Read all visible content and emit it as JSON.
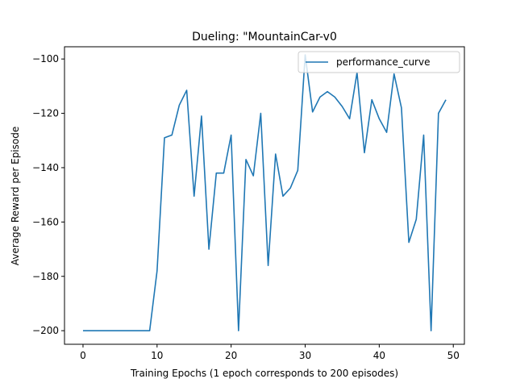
{
  "chart_data": {
    "type": "line",
    "title": "Dueling: \"MountainCar-v0",
    "xlabel": "Training Epochs (1 epoch corresponds to 200 episodes)",
    "ylabel": "Average Reward per Episode",
    "xlim": [
      -2.5,
      51.5
    ],
    "ylim": [
      -205,
      -95.5
    ],
    "xticks": [
      0,
      10,
      20,
      30,
      40,
      50
    ],
    "yticks": [
      -200,
      -180,
      -160,
      -140,
      -120,
      -100
    ],
    "legend": {
      "position": "top-right"
    },
    "grid": false,
    "series": [
      {
        "name": "performance_curve",
        "color": "#1f77b4",
        "x": [
          0,
          1,
          2,
          3,
          4,
          5,
          6,
          7,
          8,
          9,
          10,
          11,
          12,
          13,
          14,
          15,
          16,
          17,
          18,
          19,
          20,
          21,
          22,
          23,
          24,
          25,
          26,
          27,
          28,
          29,
          30,
          31,
          32,
          33,
          34,
          35,
          36,
          37,
          38,
          39,
          40,
          41,
          42,
          43,
          44,
          45,
          46,
          47,
          48,
          49
        ],
        "y": [
          -200,
          -200,
          -200,
          -200,
          -200,
          -200,
          -200,
          -200,
          -200,
          -200,
          -178,
          -129,
          -128,
          -117,
          -111.5,
          -150.5,
          -121,
          -170,
          -142,
          -142,
          -128,
          -200,
          -137,
          -143,
          -120,
          -176,
          -135,
          -150.5,
          -147.5,
          -141,
          -98.5,
          -119.5,
          -114,
          -112,
          -114,
          -117.5,
          -122,
          -105,
          -134.5,
          -115,
          -122,
          -127,
          -105.5,
          -118,
          -167.5,
          -159,
          -128,
          -200,
          -120,
          -115
        ]
      }
    ]
  }
}
